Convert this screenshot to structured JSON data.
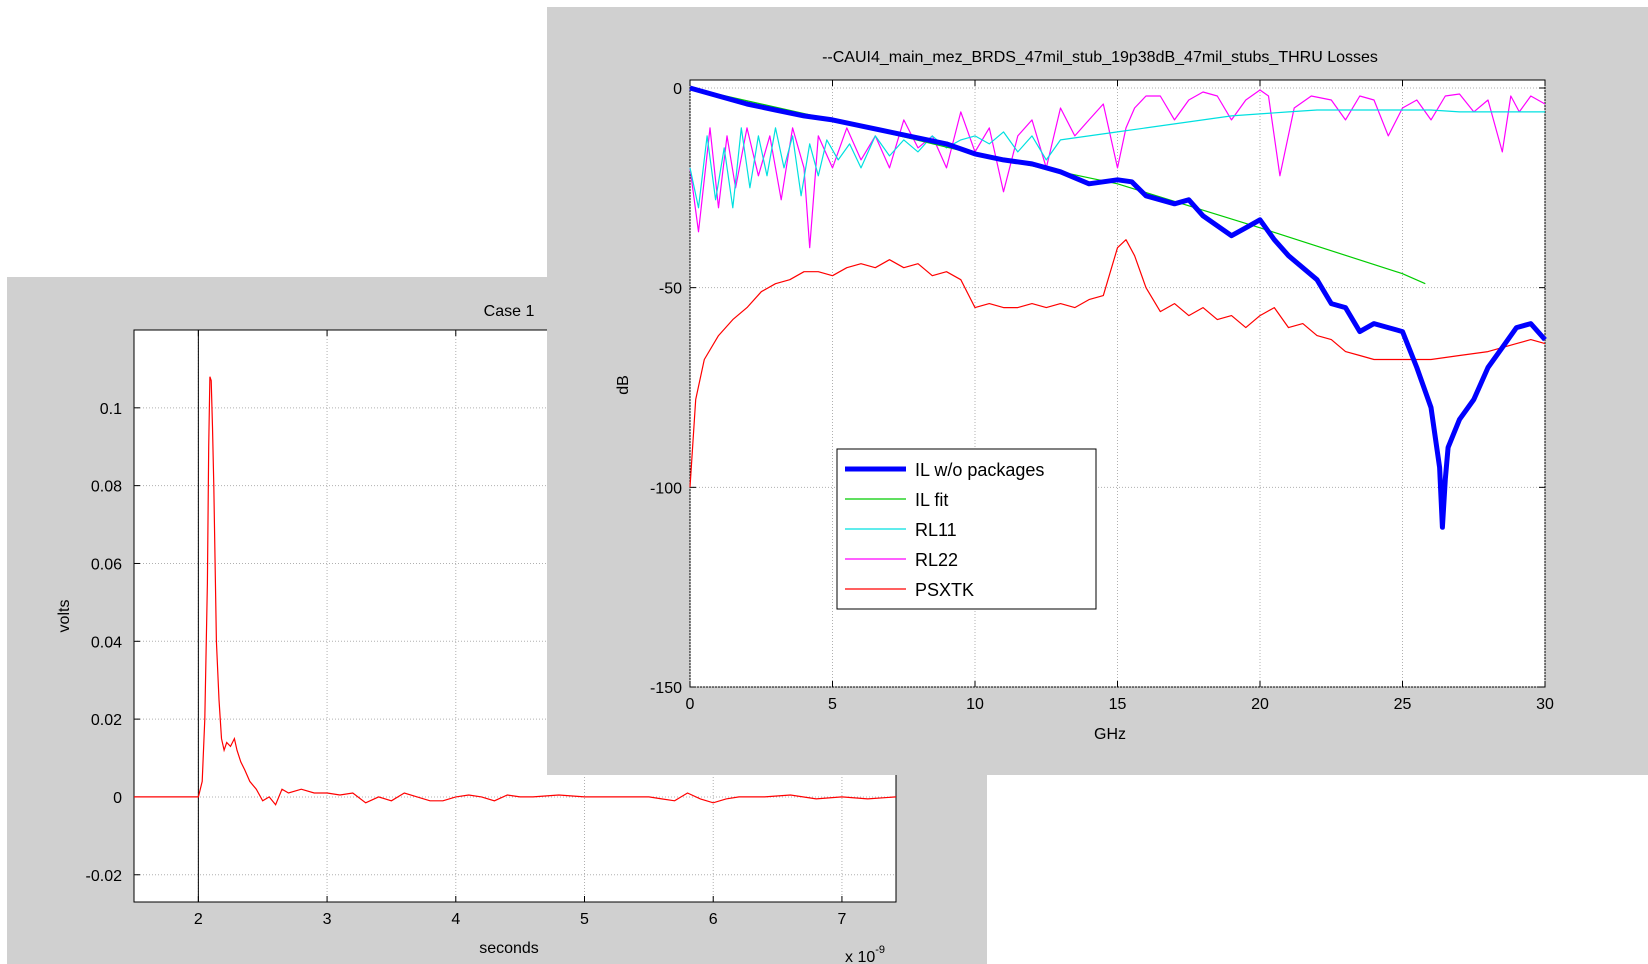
{
  "windows": [
    {
      "id": "case1",
      "chart_data": {
        "type": "line",
        "title": "Case 1",
        "xlabel": "seconds",
        "ylabel": "volts",
        "x_multiplier": "x 10",
        "x_multiplier_exponent": "-9",
        "xlim": [
          1.5,
          7.42
        ],
        "ylim": [
          -0.027,
          0.12
        ],
        "xticks": [
          2,
          3,
          4,
          5,
          6,
          7
        ],
        "yticks": [
          -0.02,
          0,
          0.02,
          0.04,
          0.06,
          0.08,
          0.1
        ],
        "ytick_labels": [
          "-0.02",
          "0",
          "0.02",
          "0.04",
          "0.06",
          "0.08",
          "0.1"
        ],
        "grid": true,
        "vertical_marker_x": 2.0,
        "series": [
          {
            "color": "#ff0000",
            "x": [
              1.5,
              2.0,
              2.03,
              2.05,
              2.07,
              2.08,
              2.09,
              2.1,
              2.11,
              2.12,
              2.13,
              2.14,
              2.16,
              2.18,
              2.2,
              2.22,
              2.25,
              2.28,
              2.3,
              2.33,
              2.36,
              2.4,
              2.45,
              2.5,
              2.55,
              2.6,
              2.65,
              2.7,
              2.8,
              2.9,
              3.0,
              3.1,
              3.2,
              3.3,
              3.4,
              3.5,
              3.6,
              3.7,
              3.8,
              3.9,
              4.0,
              4.1,
              4.2,
              4.3,
              4.4,
              4.5,
              4.6,
              4.8,
              5.0,
              5.2,
              5.4,
              5.5,
              5.6,
              5.7,
              5.8,
              5.9,
              6.0,
              6.1,
              6.2,
              6.3,
              6.4,
              6.6,
              6.8,
              7.0,
              7.2,
              7.42
            ],
            "y": [
              0,
              0,
              0.004,
              0.02,
              0.055,
              0.09,
              0.108,
              0.107,
              0.095,
              0.08,
              0.06,
              0.04,
              0.025,
              0.015,
              0.012,
              0.014,
              0.013,
              0.015,
              0.012,
              0.009,
              0.007,
              0.004,
              0.002,
              -0.001,
              0.0,
              -0.002,
              0.002,
              0.001,
              0.002,
              0.001,
              0.001,
              0.0005,
              0.001,
              -0.0015,
              0.0,
              -0.001,
              0.001,
              0.0,
              -0.001,
              -0.001,
              0.0,
              0.0005,
              0.0,
              -0.001,
              0.0005,
              0.0,
              0.0,
              0.0005,
              0.0,
              0.0,
              0.0,
              0.0,
              -0.0005,
              -0.001,
              0.001,
              -0.0005,
              -0.0015,
              -0.0005,
              0.0,
              0.0,
              0.0,
              0.0005,
              -0.0005,
              0.0,
              -0.0005,
              0.0
            ]
          }
        ]
      }
    },
    {
      "id": "thru",
      "chart_data": {
        "type": "line",
        "title": "--CAUI4_main_mez_BRDS_47mil_stub_19p38dB_47mil_stubs_THRU Losses",
        "xlabel": "GHz",
        "ylabel": "dB",
        "xlim": [
          0,
          30
        ],
        "ylim": [
          -150,
          2
        ],
        "xticks": [
          0,
          5,
          10,
          15,
          20,
          25,
          30
        ],
        "yticks": [
          -150,
          -100,
          -50,
          0
        ],
        "grid": true,
        "legend": {
          "placement": "lower-left",
          "entries": [
            "IL w/o packages",
            "IL fit",
            "RL11",
            "RL22",
            "PSXTK"
          ]
        },
        "series": [
          {
            "name": "IL w/o packages",
            "color": "#0000ff",
            "width": "thick",
            "x": [
              0,
              1,
              2,
              3,
              4,
              5,
              6,
              7,
              8,
              9,
              10,
              11,
              12,
              13,
              14,
              15,
              15.5,
              16,
              17,
              17.5,
              18,
              19,
              19.5,
              20,
              20.5,
              21,
              22,
              22.5,
              23,
              23.5,
              24,
              24.5,
              25,
              25.5,
              26,
              26.3,
              26.4,
              26.5,
              26.6,
              27,
              27.5,
              28,
              28.5,
              29,
              29.5,
              30
            ],
            "y": [
              0,
              -2,
              -4,
              -5.5,
              -7,
              -8,
              -9.5,
              -11,
              -12.5,
              -14,
              -16.5,
              -18,
              -19,
              -21,
              -24,
              -23,
              -23.5,
              -27,
              -29,
              -28,
              -32,
              -37,
              -35,
              -33,
              -38,
              -42,
              -48,
              -54,
              -55,
              -61,
              -59,
              -60,
              -61,
              -70,
              -80,
              -95,
              -110,
              -98,
              -90,
              -83,
              -78,
              -70,
              -65,
              -60,
              -59,
              -63
            ]
          },
          {
            "name": "IL fit",
            "color": "#00cc00",
            "width": "thin",
            "x": [
              0,
              5,
              10,
              15,
              20,
              25,
              25.8
            ],
            "y": [
              0,
              -8,
              -16.5,
              -24,
              -35,
              -46.5,
              -49
            ]
          },
          {
            "name": "RL11",
            "color": "#00e0e0",
            "width": "thin",
            "x": [
              0,
              0.3,
              0.6,
              0.9,
              1.2,
              1.5,
              1.8,
              2.1,
              2.4,
              2.7,
              3.0,
              3.3,
              3.6,
              3.9,
              4.2,
              4.5,
              4.8,
              5.2,
              5.6,
              6.0,
              6.5,
              7.0,
              7.5,
              8.0,
              8.5,
              9.0,
              9.5,
              10,
              10.5,
              11,
              11.5,
              12,
              12.5,
              13,
              14,
              15,
              16,
              17,
              18,
              19,
              20,
              21,
              22,
              23,
              24,
              25,
              26,
              27,
              28,
              29,
              30
            ],
            "y": [
              -20,
              -30,
              -12,
              -28,
              -15,
              -30,
              -10,
              -25,
              -12,
              -22,
              -10,
              -20,
              -12,
              -27,
              -14,
              -22,
              -13,
              -18,
              -14,
              -20,
              -12,
              -17,
              -13,
              -16,
              -12,
              -15,
              -13,
              -12,
              -14,
              -11,
              -16,
              -12,
              -18,
              -13,
              -12,
              -11,
              -10,
              -9,
              -8,
              -7,
              -6.5,
              -6,
              -5.5,
              -5.5,
              -5.5,
              -5.5,
              -5.5,
              -6,
              -6,
              -6,
              -6
            ]
          },
          {
            "name": "RL22",
            "color": "#ff00ff",
            "width": "thin",
            "x": [
              0,
              0.3,
              0.7,
              1.0,
              1.3,
              1.6,
              2.0,
              2.4,
              2.8,
              3.2,
              3.6,
              4.0,
              4.2,
              4.5,
              5.0,
              5.5,
              6.0,
              6.5,
              7.0,
              7.5,
              8.0,
              8.5,
              9.0,
              9.5,
              10,
              10.5,
              11,
              11.5,
              12,
              12.5,
              13,
              13.5,
              14,
              14.5,
              15,
              15.3,
              15.6,
              16,
              16.5,
              17,
              17.5,
              18,
              18.5,
              19,
              19.5,
              20,
              20.3,
              20.7,
              21.2,
              21.8,
              22.5,
              23,
              23.5,
              24,
              24.5,
              25.0,
              25.5,
              26.0,
              26.5,
              27,
              27.5,
              28,
              28.5,
              28.8,
              29.1,
              29.5,
              30
            ],
            "y": [
              -20,
              -36,
              -10,
              -30,
              -12,
              -25,
              -10,
              -22,
              -12,
              -28,
              -10,
              -20,
              -40,
              -12,
              -20,
              -10,
              -18,
              -12,
              -20,
              -8,
              -15,
              -12,
              -20,
              -6,
              -16,
              -10,
              -26,
              -12,
              -8,
              -20,
              -5,
              -12,
              -8,
              -4,
              -20,
              -10,
              -5,
              -2,
              -2,
              -8,
              -3,
              -1,
              -2,
              -8,
              -3,
              -0.5,
              -2,
              -22,
              -5,
              -2,
              -3,
              -8,
              -2,
              -3,
              -12,
              -5,
              -3,
              -8,
              -2,
              -1.5,
              -6,
              -3,
              -16,
              -2,
              -6,
              -2,
              -4
            ]
          },
          {
            "name": "PSXTK",
            "color": "#ff0000",
            "width": "thin",
            "x": [
              0,
              0.2,
              0.5,
              1,
              1.5,
              2,
              2.5,
              3,
              3.5,
              4,
              4.5,
              5,
              5.5,
              6,
              6.5,
              7,
              7.5,
              8,
              8.5,
              9,
              9.5,
              10,
              10.5,
              11,
              11.5,
              12,
              12.5,
              13,
              13.5,
              14,
              14.5,
              15,
              15.3,
              15.6,
              16,
              16.5,
              17,
              17.5,
              18,
              18.5,
              19,
              19.5,
              20,
              20.5,
              21,
              21.5,
              22,
              22.5,
              23,
              23.5,
              24,
              25,
              26,
              27,
              28,
              29,
              29.5,
              30
            ],
            "y": [
              -100,
              -78,
              -68,
              -62,
              -58,
              -55,
              -51,
              -49,
              -48,
              -46,
              -46,
              -47,
              -45,
              -44,
              -45,
              -43,
              -45,
              -44,
              -47,
              -46,
              -48,
              -55,
              -54,
              -55,
              -55,
              -54,
              -55,
              -54,
              -55,
              -53,
              -52,
              -40,
              -38,
              -42,
              -50,
              -56,
              -54,
              -57,
              -55,
              -58,
              -57,
              -60,
              -57,
              -55,
              -60,
              -59,
              -62,
              -63,
              -66,
              -67,
              -68,
              -68,
              -68,
              -67,
              -66,
              -64,
              -63,
              -64
            ]
          }
        ]
      }
    }
  ]
}
